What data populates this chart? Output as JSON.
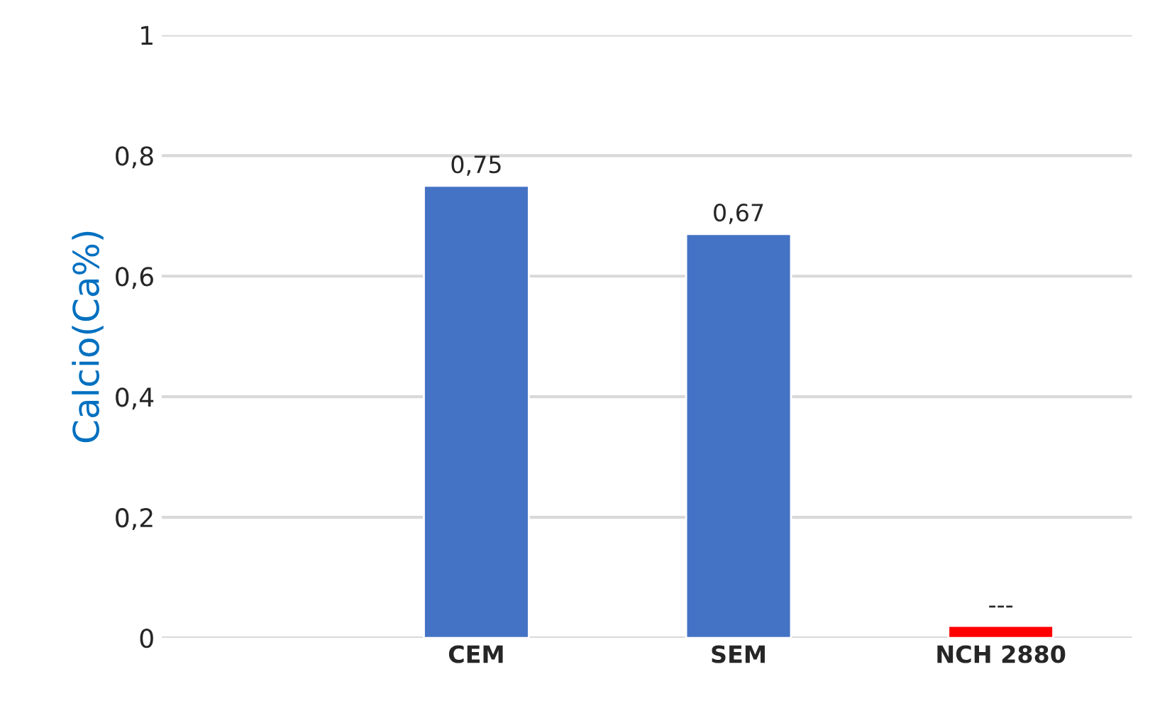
{
  "chart_data": {
    "type": "bar",
    "ylabel": "Calcio(Ca%)",
    "categories": [
      "CEM",
      "SEM",
      "NCH 2880"
    ],
    "values": [
      0.75,
      0.67,
      0.02
    ],
    "colors": [
      "#4472c4",
      "#4472c4",
      "#ff0000"
    ],
    "value_labels": [
      "0,75",
      "0,67",
      "---"
    ],
    "ylim": [
      0,
      1
    ],
    "yticks": [
      0,
      {
        "value": 0.2,
        "label": "0,2"
      },
      {
        "value": 0.4,
        "label": "0,4"
      },
      {
        "value": 0.6,
        "label": "0,6"
      },
      {
        "value": 0.8,
        "label": "0,8"
      },
      1
    ],
    "grid": "y"
  }
}
